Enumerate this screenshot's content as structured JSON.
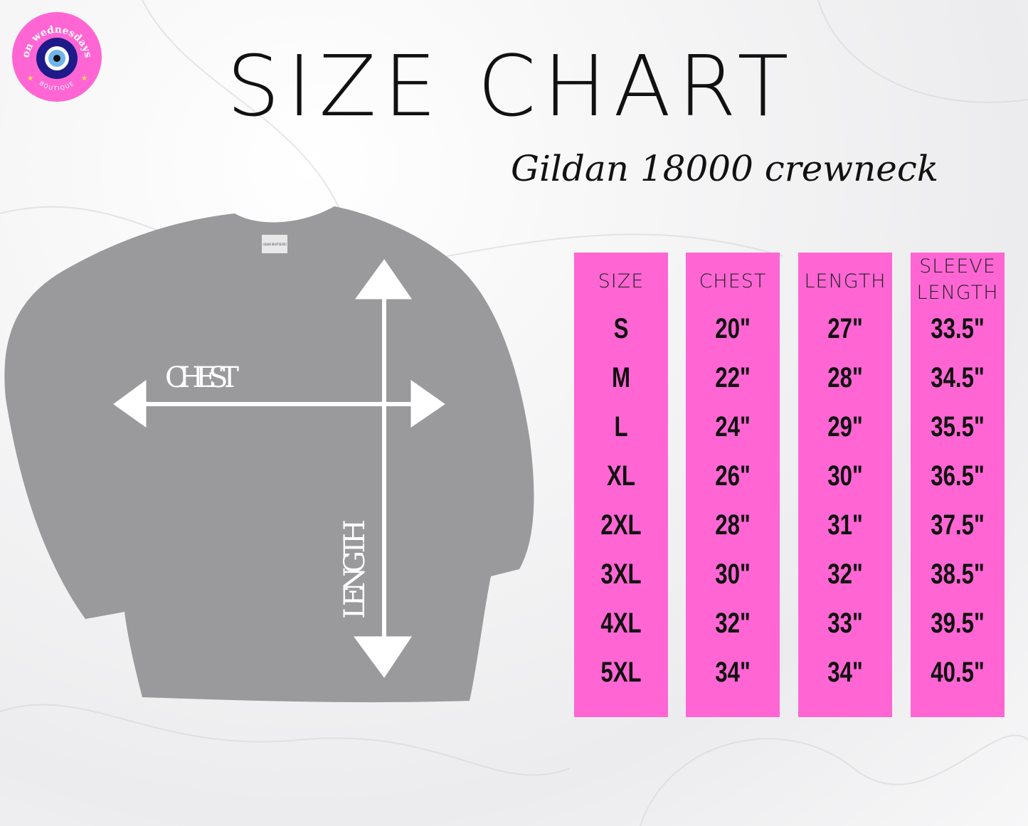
{
  "logo": {
    "top_text": "on wednesdays",
    "bottom_text": "BOUTIQUE",
    "colors": {
      "ring": "#ff66d4",
      "eye_outer": "#1f1a8a",
      "eye_iris": "#6fb4ea",
      "star": "#ffe04a"
    }
  },
  "title": "SIZE CHART",
  "subtitle": "Gildan 18000 crewneck",
  "garment": {
    "chest_label": "CHEST",
    "length_label": "LENGTH",
    "tag_text": "GILDAN HEAVY BLEND",
    "color": "#9a9a9c"
  },
  "table": {
    "accent": "#ff66d4",
    "columns": [
      {
        "header": [
          "SIZE"
        ],
        "values": [
          "S",
          "M",
          "L",
          "XL",
          "2XL",
          "3XL",
          "4XL",
          "5XL"
        ]
      },
      {
        "header": [
          "CHEST"
        ],
        "values": [
          "20\"",
          "22\"",
          "24\"",
          "26\"",
          "28\"",
          "30\"",
          "32\"",
          "34\""
        ]
      },
      {
        "header": [
          "LENGTH"
        ],
        "values": [
          "27\"",
          "28\"",
          "29\"",
          "30\"",
          "31\"",
          "32\"",
          "33\"",
          "34\""
        ]
      },
      {
        "header": [
          "SLEEVE",
          "LENGTH"
        ],
        "values": [
          "33.5\"",
          "34.5\"",
          "35.5\"",
          "36.5\"",
          "37.5\"",
          "38.5\"",
          "39.5\"",
          "40.5\""
        ]
      }
    ]
  }
}
